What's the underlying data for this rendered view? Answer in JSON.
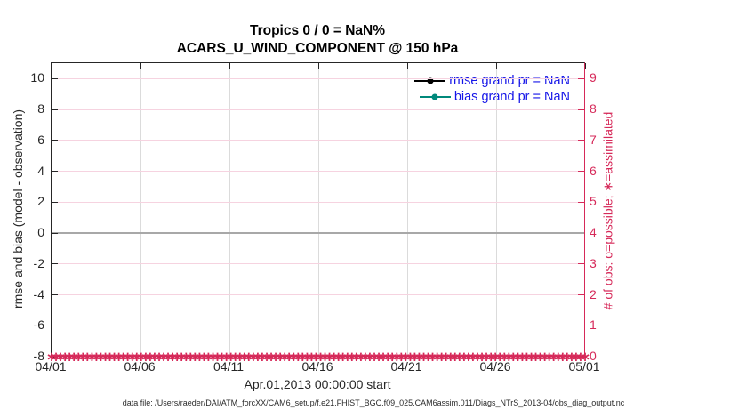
{
  "figure": {
    "footer": "data file: /Users/raeder/DAI/ATM_forcXX/CAM6_setup/f.e21.FHIST_BGC.f09_025.CAM6assim.011/Diags_NTrS_2013-04/obs_diag_output.nc"
  },
  "chart_data": {
    "type": "line",
    "title_line1": "Tropics 0 / 0 = NaN%",
    "title_line2": "ACARS_U_WIND_COMPONENT @ 150 hPa",
    "xlabel": "Apr.01,2013 00:00:00 start",
    "ylabel_left": "rmse and bias (model - observation)",
    "ylabel_right": "# of obs: o=possible; ∗=assimilated",
    "x_ticks": [
      "04/01",
      "04/06",
      "04/11",
      "04/16",
      "04/21",
      "04/26",
      "05/01"
    ],
    "y_left_ticks": [
      10,
      8,
      6,
      4,
      2,
      0,
      -2,
      -4,
      -6,
      -8
    ],
    "y_left_lim": [
      -8,
      11
    ],
    "y_right_ticks": [
      9,
      8,
      7,
      6,
      5,
      4,
      3,
      2,
      1,
      0
    ],
    "y_right_lim": [
      0,
      9.5
    ],
    "grid": true,
    "zero_line_y": 0,
    "legend_position": "top-right",
    "series": [
      {
        "name": "rmse grand pr = NaN",
        "color": "#000000",
        "values": []
      },
      {
        "name": "bias grand pr = NaN",
        "color": "#00897b",
        "values": []
      }
    ],
    "obs_markers": {
      "marker": "∗",
      "value": 0,
      "n_bins": 120
    }
  },
  "colors": {
    "right_axis": "#d62959",
    "grid_pink": "#f6d3e0",
    "grid_gray": "#dbdbdb",
    "zero_line": "#a8a8a8",
    "legend_text": "#1414e8",
    "axis_dark": "#262626"
  }
}
